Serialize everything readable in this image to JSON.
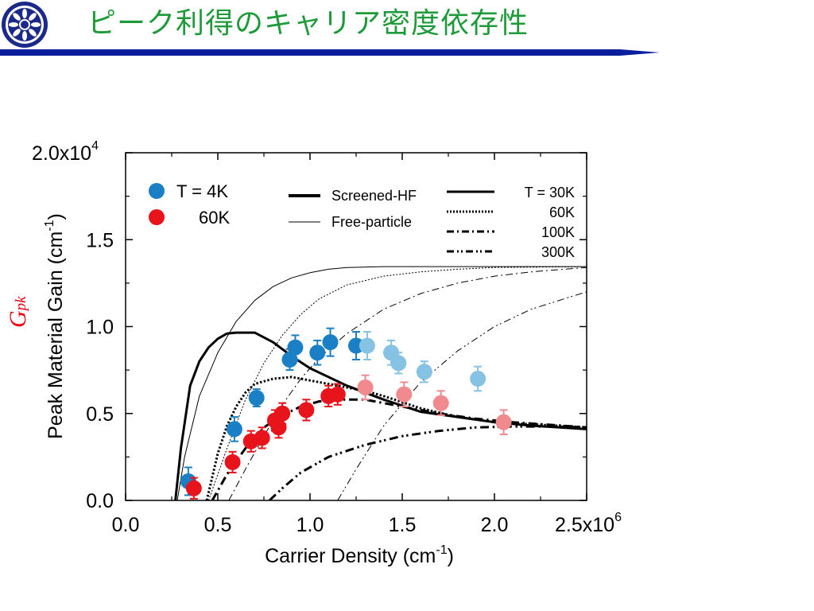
{
  "slide": {
    "title": "ピーク利得のキャリア密度依存性",
    "side_label_main": "G",
    "side_label_sub": "pk",
    "accent_title": "#1e9a3a",
    "accent_rule": "#0a1f9e",
    "accent_label": "#e60012"
  },
  "chart_data": {
    "type": "scatter",
    "xlabel": "Carrier Density (cm",
    "xlabel_sup": "-1",
    "xlabel_end": ")",
    "ylabel": "Peak Material Gain (cm",
    "ylabel_sup": "-1",
    "ylabel_end": ")",
    "xlim": [
      0,
      2500000
    ],
    "ylim": [
      0,
      20000
    ],
    "x_ticks": [
      0,
      500000,
      1000000,
      1500000,
      2000000,
      2500000
    ],
    "y_ticks": [
      0,
      5000,
      10000,
      15000,
      20000
    ],
    "x_tick_labels": [
      "0.0",
      "0.5",
      "1.0",
      "1.5",
      "2.0",
      "2.5x10"
    ],
    "x_tick_exp": "6",
    "y_tick_labels": [
      "0.0",
      "0.5",
      "1.0",
      "1.5",
      "2.0x10"
    ],
    "y_tick_exp": "4",
    "grid": false,
    "legend_position": "top",
    "marker_legend": [
      {
        "label": "T = 4K",
        "color": "#1a7fc4"
      },
      {
        "label": "60K",
        "color": "#e8141c"
      }
    ],
    "model_legend": [
      {
        "label": "Screened-HF",
        "style": "thick"
      },
      {
        "label": "Free-particle",
        "style": "thin"
      }
    ],
    "temperature_legend": [
      {
        "label": "T = 30K",
        "style": "solid"
      },
      {
        "label": "60K",
        "style": "dotted"
      },
      {
        "label": "100K",
        "style": "dashdot"
      },
      {
        "label": "300K",
        "style": "dashdotdot"
      }
    ],
    "series": [
      {
        "name": "T = 4K",
        "color": "#1a7fc4",
        "points": [
          {
            "x": 340000,
            "y": 1100,
            "err": 800
          },
          {
            "x": 590000,
            "y": 4100,
            "err": 700
          },
          {
            "x": 710000,
            "y": 5900,
            "err": 500
          },
          {
            "x": 890000,
            "y": 8100,
            "err": 600
          },
          {
            "x": 920000,
            "y": 8800,
            "err": 700
          },
          {
            "x": 1040000,
            "y": 8500,
            "err": 700
          },
          {
            "x": 1110000,
            "y": 9100,
            "err": 800
          },
          {
            "x": 1250000,
            "y": 8900,
            "err": 800
          }
        ]
      },
      {
        "name": "T = 4K (continued)",
        "color": "#86c2e3",
        "points": [
          {
            "x": 1310000,
            "y": 8900,
            "err": 800
          },
          {
            "x": 1440000,
            "y": 8500,
            "err": 700
          },
          {
            "x": 1480000,
            "y": 7900,
            "err": 600
          },
          {
            "x": 1620000,
            "y": 7400,
            "err": 600
          },
          {
            "x": 1910000,
            "y": 7000,
            "err": 700
          }
        ]
      },
      {
        "name": "60K",
        "color": "#e8141c",
        "points": [
          {
            "x": 370000,
            "y": 700,
            "err": 600
          },
          {
            "x": 580000,
            "y": 2200,
            "err": 600
          },
          {
            "x": 680000,
            "y": 3400,
            "err": 600
          },
          {
            "x": 740000,
            "y": 3600,
            "err": 600
          },
          {
            "x": 810000,
            "y": 4600,
            "err": 600
          },
          {
            "x": 830000,
            "y": 4200,
            "err": 600
          },
          {
            "x": 850000,
            "y": 5000,
            "err": 600
          },
          {
            "x": 980000,
            "y": 5200,
            "err": 600
          },
          {
            "x": 1100000,
            "y": 6000,
            "err": 600
          },
          {
            "x": 1150000,
            "y": 6100,
            "err": 600
          }
        ]
      },
      {
        "name": "60K (continued)",
        "color": "#f08a8e",
        "points": [
          {
            "x": 1300000,
            "y": 6500,
            "err": 700
          },
          {
            "x": 1510000,
            "y": 6100,
            "err": 700
          },
          {
            "x": 1710000,
            "y": 5600,
            "err": 700
          },
          {
            "x": 2050000,
            "y": 4500,
            "err": 700
          }
        ]
      }
    ],
    "curves": [
      {
        "model": "Free-particle",
        "temperature": "30K",
        "style": "solid",
        "width": "thin",
        "x": [
          280000,
          320000,
          400000,
          500000,
          600000,
          700000,
          800000,
          900000,
          1000000,
          1100000,
          1200000,
          1400000,
          1600000,
          2000000,
          2500000
        ],
        "y": [
          0,
          2500,
          6000,
          8500,
          10300,
          11500,
          12300,
          12800,
          13100,
          13300,
          13400,
          13450,
          13450,
          13450,
          13450
        ]
      },
      {
        "model": "Free-particle",
        "temperature": "60K",
        "style": "dotted",
        "width": "thin",
        "x": [
          450000,
          550000,
          650000,
          750000,
          850000,
          950000,
          1050000,
          1200000,
          1400000,
          1600000,
          1800000,
          2000000,
          2500000
        ],
        "y": [
          0,
          3000,
          5800,
          7900,
          9500,
          10700,
          11600,
          12400,
          12900,
          13150,
          13300,
          13400,
          13450
        ]
      },
      {
        "model": "Free-particle",
        "temperature": "100K",
        "style": "dashdot",
        "width": "thin",
        "x": [
          560000,
          650000,
          750000,
          850000,
          950000,
          1050000,
          1200000,
          1400000,
          1600000,
          1800000,
          2000000,
          2200000,
          2500000
        ],
        "y": [
          0,
          1800,
          3700,
          5500,
          7000,
          8200,
          9600,
          11000,
          11900,
          12500,
          12900,
          13150,
          13400
        ]
      },
      {
        "model": "Free-particle",
        "temperature": "300K",
        "style": "dashdotdot",
        "width": "thin",
        "x": [
          1150000,
          1250000,
          1400000,
          1600000,
          1800000,
          2000000,
          2200000,
          2500000
        ],
        "y": [
          0,
          1800,
          4300,
          6800,
          8600,
          10000,
          11000,
          12000
        ]
      },
      {
        "model": "Screened-HF",
        "temperature": "30K",
        "style": "solid",
        "width": "thick",
        "x": [
          270000,
          300000,
          350000,
          400000,
          450000,
          500000,
          550000,
          600000,
          700000,
          800000,
          900000,
          1000000,
          1200000,
          1400000,
          1600000,
          1800000,
          2000000,
          2200000,
          2500000
        ],
        "y": [
          0,
          3000,
          6600,
          8000,
          8800,
          9300,
          9600,
          9650,
          9650,
          9100,
          8300,
          7600,
          6600,
          5800,
          5100,
          4800,
          4500,
          4300,
          4100
        ]
      },
      {
        "model": "Screened-HF",
        "temperature": "60K",
        "style": "dotted",
        "width": "thick",
        "x": [
          440000,
          500000,
          550000,
          600000,
          650000,
          700000,
          800000,
          900000,
          1000000,
          1100000,
          1200000,
          1300000,
          1400000,
          1600000,
          1800000,
          2000000,
          2500000
        ],
        "y": [
          0,
          2700,
          4300,
          5400,
          6200,
          6700,
          7000,
          7100,
          6900,
          6700,
          6500,
          6300,
          6000,
          5300,
          4800,
          4500,
          4200
        ]
      },
      {
        "model": "Screened-HF",
        "temperature": "100K",
        "style": "dashdot",
        "width": "thick",
        "x": [
          470000,
          550000,
          650000,
          750000,
          850000,
          950000,
          1050000,
          1150000,
          1300000,
          1500000,
          1700000,
          1900000,
          2100000,
          2500000
        ],
        "y": [
          0,
          1500,
          3000,
          4200,
          4900,
          5400,
          5700,
          5800,
          5800,
          5400,
          5000,
          4700,
          4500,
          4200
        ]
      },
      {
        "model": "Screened-HF",
        "temperature": "300K",
        "style": "dashdotdot",
        "width": "thick",
        "x": [
          780000,
          850000,
          950000,
          1100000,
          1300000,
          1500000,
          1700000,
          1900000,
          2100000,
          2300000,
          2500000
        ],
        "y": [
          0,
          700,
          1600,
          2500,
          3200,
          3700,
          4000,
          4200,
          4250,
          4250,
          4200
        ]
      }
    ]
  }
}
